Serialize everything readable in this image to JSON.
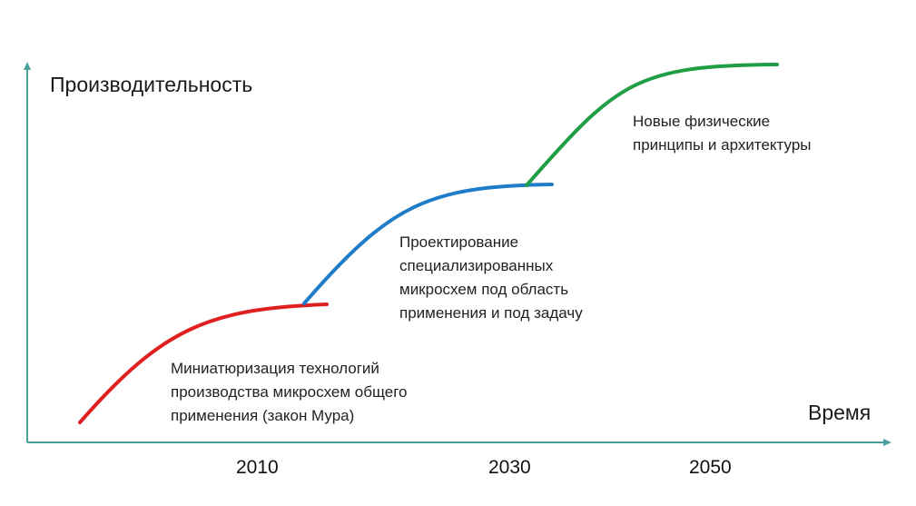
{
  "axes": {
    "y_label": "Производительность",
    "x_label": "Время",
    "color": "#4a9e9c",
    "x_ticks": [
      "2010",
      "2030",
      "2050"
    ]
  },
  "stages": [
    {
      "color": "#e02020",
      "caption": [
        "Миниатюризация технологий",
        "производства микросхем общего",
        "применения (закон Мура)"
      ]
    },
    {
      "color": "#1f7cc8",
      "caption": [
        "Проектирование",
        "специализированных",
        "микросхем под область",
        "применения и под задачу"
      ]
    },
    {
      "color": "#1f9e44",
      "caption": [
        "Новые физические",
        "принципы и архитектуры"
      ]
    }
  ]
}
